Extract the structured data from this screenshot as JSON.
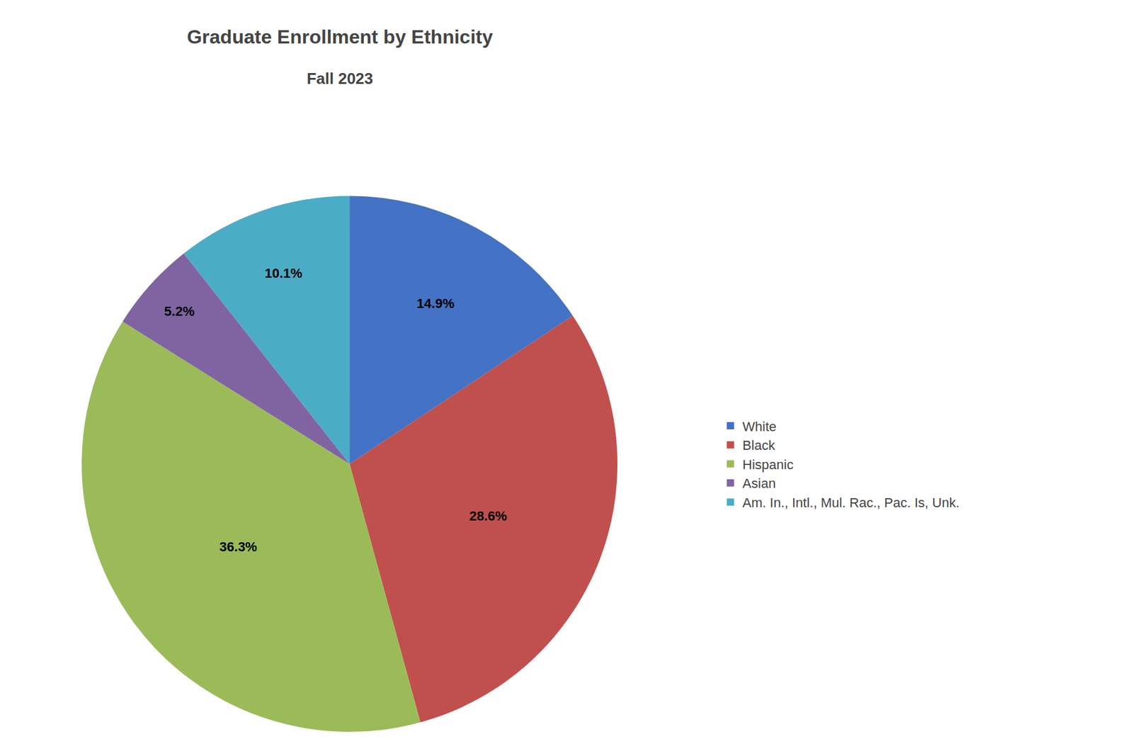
{
  "chart_data": {
    "type": "pie",
    "title": "Graduate Enrollment by Ethnicity",
    "subtitle": "Fall 2023",
    "categories": [
      "White",
      "Black",
      "Hispanic",
      "Asian",
      "Am. In., Intl., Mul. Rac., Pac. Is, Unk."
    ],
    "values": [
      14.9,
      28.6,
      36.3,
      5.2,
      10.1
    ],
    "value_labels": [
      "14.9%",
      "28.6%",
      "36.3%",
      "5.2%",
      "10.1%"
    ],
    "colors": [
      "#4472C4",
      "#C0504D",
      "#9BBB59",
      "#8064A2",
      "#4BACC6"
    ],
    "data_labels": true,
    "legend": "right"
  }
}
